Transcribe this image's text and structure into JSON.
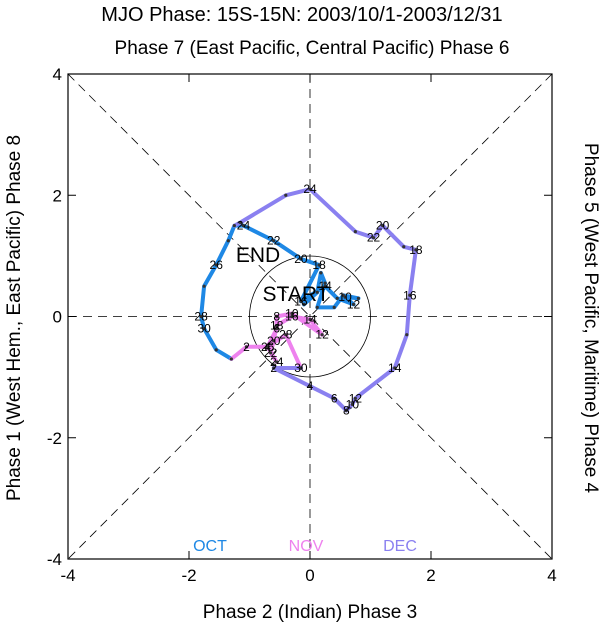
{
  "title": "MJO Phase: 15S-15N: 2003/10/1-2003/12/31",
  "top_label": "Phase 7 (East Pacific, Central Pacific) Phase 6",
  "bottom_label": "Phase 2 (Indian) Phase 3",
  "left_label": "Phase 1 (West Hem., East Pacific) Phase 8",
  "right_label": "Phase 5 (West Pacific, Maritime) Phase 4",
  "start_label": "START",
  "end_label": "END",
  "chart_data": {
    "type": "line",
    "xlim": [
      -4,
      4
    ],
    "ylim": [
      -4,
      4
    ],
    "x_ticks": [
      "-4",
      "-2",
      "0",
      "2",
      "4"
    ],
    "y_ticks": [
      "-4",
      "-2",
      "0",
      "2",
      "4"
    ],
    "unit_circle_radius": 1,
    "grid": false,
    "legend_position": "bottom",
    "series": [
      {
        "name": "OCT",
        "color": "#1e88e5",
        "points": [
          {
            "day": "",
            "x": -0.1,
            "y": 0.2
          },
          {
            "day": "",
            "x": 0.12,
            "y": 0.4
          },
          {
            "day": "",
            "x": 0.18,
            "y": 0.72
          },
          {
            "day": "",
            "x": 0.25,
            "y": 0.55
          },
          {
            "day": "",
            "x": 0.12,
            "y": 0.15
          },
          {
            "day": "",
            "x": 0.4,
            "y": 0.15
          },
          {
            "day": "",
            "x": 0.55,
            "y": 0.35
          },
          {
            "day": "",
            "x": 0.8,
            "y": 0.3
          },
          {
            "day": "10",
            "x": 0.58,
            "y": 0.32
          },
          {
            "day": "12",
            "x": 0.72,
            "y": 0.2
          },
          {
            "day": "",
            "x": 0.45,
            "y": 0.3
          },
          {
            "day": "14",
            "x": 0.25,
            "y": 0.5
          },
          {
            "day": "16",
            "x": -0.15,
            "y": 0.25
          },
          {
            "day": "18",
            "x": 0.15,
            "y": 0.85
          },
          {
            "day": "20",
            "x": -0.15,
            "y": 0.95
          },
          {
            "day": "22",
            "x": -0.6,
            "y": 1.25
          },
          {
            "day": "24",
            "x": -1.1,
            "y": 1.5
          },
          {
            "day": "",
            "x": -1.25,
            "y": 1.5
          },
          {
            "day": "",
            "x": -1.35,
            "y": 1.25
          },
          {
            "day": "26",
            "x": -1.55,
            "y": 0.85
          },
          {
            "day": "",
            "x": -1.75,
            "y": 0.5
          },
          {
            "day": "28",
            "x": -1.8,
            "y": 0.0
          },
          {
            "day": "30",
            "x": -1.75,
            "y": -0.2
          },
          {
            "day": "",
            "x": -1.55,
            "y": -0.55
          },
          {
            "day": "",
            "x": -1.3,
            "y": -0.7
          }
        ]
      },
      {
        "name": "NOV",
        "color": "#ee82ee",
        "points": [
          {
            "day": "",
            "x": -1.3,
            "y": -0.7
          },
          {
            "day": "2",
            "x": -1.05,
            "y": -0.5
          },
          {
            "day": "4",
            "x": -0.7,
            "y": -0.5
          },
          {
            "day": "6",
            "x": -0.55,
            "y": -0.2
          },
          {
            "day": "8",
            "x": -0.55,
            "y": 0.0
          },
          {
            "day": "10",
            "x": -0.3,
            "y": 0.05
          },
          {
            "day": "12",
            "x": 0.2,
            "y": -0.3
          },
          {
            "day": "14",
            "x": 0.0,
            "y": -0.05
          },
          {
            "day": "16",
            "x": -0.3,
            "y": 0.0
          },
          {
            "day": "18",
            "x": -0.55,
            "y": -0.15
          },
          {
            "day": "20",
            "x": -0.6,
            "y": -0.4
          },
          {
            "day": "22",
            "x": -0.65,
            "y": -0.6
          },
          {
            "day": "24",
            "x": -0.55,
            "y": -0.75
          },
          {
            "day": "26",
            "x": -0.7,
            "y": -0.5
          },
          {
            "day": "28",
            "x": -0.4,
            "y": -0.3
          },
          {
            "day": "30",
            "x": -0.15,
            "y": -0.85
          }
        ]
      },
      {
        "name": "DEC",
        "color": "#8a80f0",
        "points": [
          {
            "day": "",
            "x": -0.15,
            "y": -0.85
          },
          {
            "day": "2",
            "x": -0.6,
            "y": -0.85
          },
          {
            "day": "4",
            "x": 0.0,
            "y": -1.15
          },
          {
            "day": "6",
            "x": 0.4,
            "y": -1.35
          },
          {
            "day": "8",
            "x": 0.6,
            "y": -1.55
          },
          {
            "day": "10",
            "x": 0.7,
            "y": -1.45
          },
          {
            "day": "12",
            "x": 0.75,
            "y": -1.35
          },
          {
            "day": "14",
            "x": 1.4,
            "y": -0.85
          },
          {
            "day": "",
            "x": 1.6,
            "y": -0.3
          },
          {
            "day": "16",
            "x": 1.65,
            "y": 0.35
          },
          {
            "day": "18",
            "x": 1.75,
            "y": 1.1
          },
          {
            "day": "",
            "x": 1.55,
            "y": 1.15
          },
          {
            "day": "20",
            "x": 1.2,
            "y": 1.5
          },
          {
            "day": "22",
            "x": 1.05,
            "y": 1.3
          },
          {
            "day": "",
            "x": 0.75,
            "y": 1.4
          },
          {
            "day": "24",
            "x": 0.0,
            "y": 2.1
          },
          {
            "day": "",
            "x": -0.4,
            "y": 2.0
          },
          {
            "day": "",
            "x": -1.15,
            "y": 1.55
          },
          {
            "day": "",
            "x": -1.25,
            "y": 1.5
          }
        ]
      }
    ]
  }
}
